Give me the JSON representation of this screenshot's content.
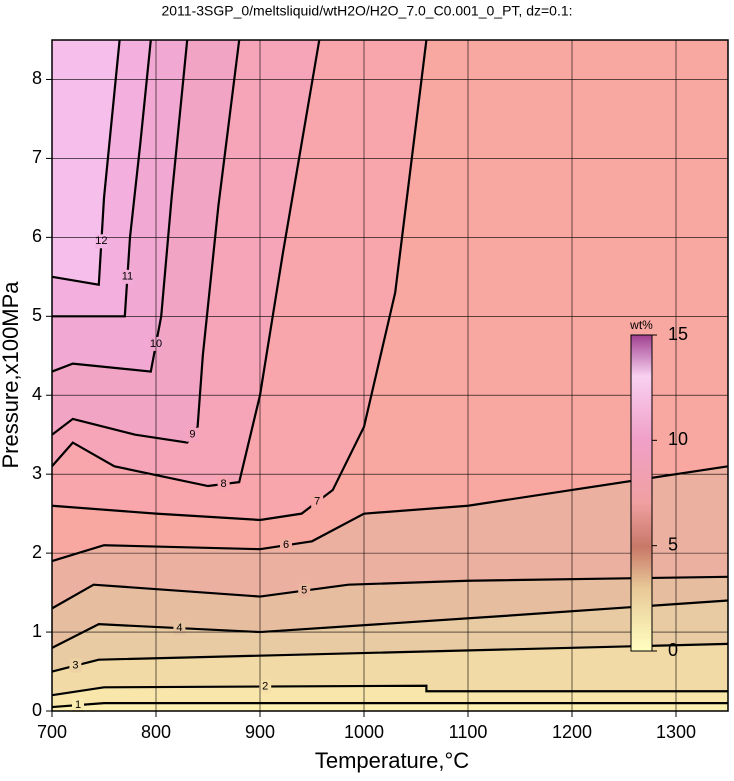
{
  "chart_data": {
    "type": "contour",
    "title": "2011-3SGP_0/meltsliquid/wtH2O/H2O_7.0_C0.001_0_PT, dz=0.1:",
    "xlabel": "Temperature,°C",
    "ylabel": "Pressure,x100MPa",
    "xlim": [
      700,
      1350
    ],
    "ylim": [
      0,
      8.5
    ],
    "xticks": [
      700,
      800,
      900,
      1000,
      1100,
      1200,
      1300
    ],
    "yticks": [
      0,
      1,
      2,
      3,
      4,
      5,
      6,
      7,
      8
    ],
    "grid": true,
    "colorbar": {
      "label": "wt%",
      "lim": [
        0,
        15
      ],
      "ticks": [
        0,
        5,
        10,
        15
      ]
    },
    "contours": [
      {
        "level": 1,
        "x": [
          700,
          750,
          1350
        ],
        "y": [
          0.05,
          0.1,
          0.1
        ]
      },
      {
        "level": 2,
        "x": [
          700,
          750,
          1060,
          1060,
          1350
        ],
        "y": [
          0.2,
          0.3,
          0.32,
          0.25,
          0.25
        ]
      },
      {
        "level": 3,
        "x": [
          700,
          745,
          1350
        ],
        "y": [
          0.5,
          0.65,
          0.85
        ]
      },
      {
        "level": 4,
        "x": [
          700,
          745,
          900,
          1130,
          1350
        ],
        "y": [
          0.8,
          1.1,
          1.0,
          1.2,
          1.4
        ]
      },
      {
        "level": 5,
        "x": [
          700,
          740,
          900,
          985,
          1100,
          1350
        ],
        "y": [
          1.3,
          1.6,
          1.45,
          1.6,
          1.65,
          1.7
        ]
      },
      {
        "level": 6,
        "x": [
          700,
          750,
          900,
          950,
          1000,
          1100,
          1350
        ],
        "y": [
          1.9,
          2.1,
          2.05,
          2.15,
          2.5,
          2.6,
          3.1
        ]
      },
      {
        "level": 7,
        "x": [
          700,
          800,
          900,
          940,
          970,
          1000,
          1030,
          1060
        ],
        "y": [
          2.6,
          2.5,
          2.42,
          2.5,
          2.8,
          3.6,
          5.3,
          8.5
        ]
      },
      {
        "level": 8,
        "x": [
          700,
          720,
          760,
          850,
          880,
          900,
          922,
          957
        ],
        "y": [
          3.1,
          3.4,
          3.1,
          2.85,
          2.9,
          4.0,
          5.8,
          8.5
        ]
      },
      {
        "level": 9,
        "x": [
          700,
          720,
          780,
          830,
          840,
          845,
          860,
          880
        ],
        "y": [
          3.5,
          3.7,
          3.5,
          3.4,
          3.6,
          4.5,
          6.4,
          8.5
        ]
      },
      {
        "level": 10,
        "x": [
          700,
          720,
          795,
          805,
          815,
          830
        ],
        "y": [
          4.3,
          4.4,
          4.3,
          5.0,
          6.5,
          8.5
        ]
      },
      {
        "level": 11,
        "x": [
          700,
          770,
          775,
          785,
          795
        ],
        "y": [
          5.0,
          5.0,
          6.0,
          7.2,
          8.5
        ]
      },
      {
        "level": 12,
        "x": [
          700,
          745,
          750,
          765
        ],
        "y": [
          5.5,
          5.4,
          6.5,
          8.5
        ]
      }
    ]
  }
}
